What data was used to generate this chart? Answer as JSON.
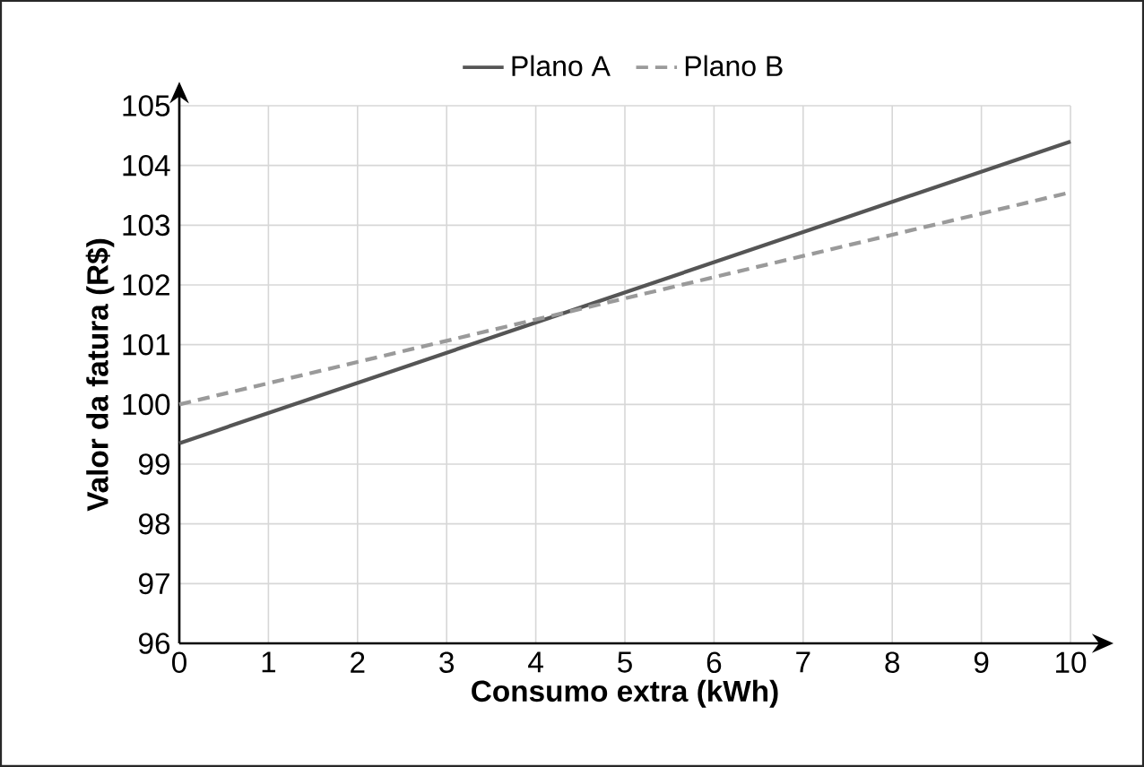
{
  "chart_data": {
    "type": "line",
    "xlabel": "Consumo extra (kWh)",
    "ylabel": "Valor da fatura (R$)",
    "x": [
      0,
      10
    ],
    "series": [
      {
        "name": "Plano A",
        "color": "#555555",
        "values": [
          99.35,
          104.4
        ],
        "line_style": "solid"
      },
      {
        "name": "Plano B",
        "color": "#9a9a9a",
        "values": [
          100.0,
          103.55
        ],
        "line_style": "dashed"
      }
    ],
    "xlim": [
      0,
      10
    ],
    "ylim": [
      96,
      105
    ],
    "xticks": [
      0,
      1,
      2,
      3,
      4,
      5,
      6,
      7,
      8,
      9,
      10
    ],
    "yticks": [
      96,
      97,
      98,
      99,
      100,
      101,
      102,
      103,
      104,
      105
    ],
    "grid": true,
    "legend": "top",
    "marker": "none"
  }
}
